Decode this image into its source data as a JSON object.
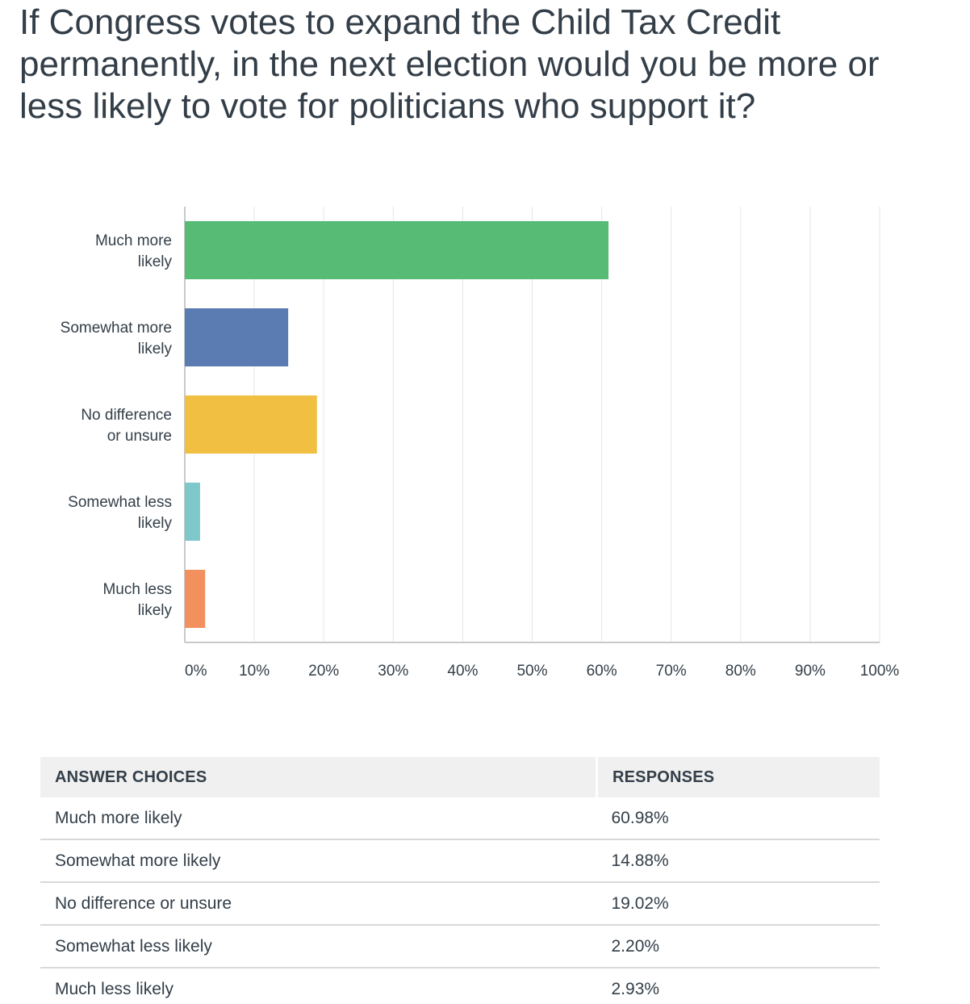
{
  "question": {
    "title": "If Congress votes to expand the Child Tax Credit permanently, in the next election would you be more or less likely to vote for politicians who support it?"
  },
  "chart_data": {
    "type": "bar",
    "orientation": "horizontal",
    "categories": [
      [
        "Much more",
        "likely"
      ],
      [
        "Somewhat more",
        "likely"
      ],
      [
        "No difference",
        "or unsure"
      ],
      [
        "Somewhat less",
        "likely"
      ],
      [
        "Much less",
        "likely"
      ]
    ],
    "values": [
      60.98,
      14.88,
      19.02,
      2.2,
      2.93
    ],
    "colors": [
      "#57bb76",
      "#5a7cb2",
      "#f1bf42",
      "#7ec8cc",
      "#f2915e"
    ],
    "xlim": [
      0,
      100
    ],
    "xticks": [
      "0%",
      "10%",
      "20%",
      "30%",
      "40%",
      "50%",
      "60%",
      "70%",
      "80%",
      "90%",
      "100%"
    ],
    "grid": true,
    "title": "",
    "xlabel": "",
    "ylabel": ""
  },
  "table": {
    "headers": [
      "ANSWER CHOICES",
      "RESPONSES"
    ],
    "rows": [
      {
        "choice": "Much more likely",
        "response": "60.98%"
      },
      {
        "choice": "Somewhat more likely",
        "response": "14.88%"
      },
      {
        "choice": "No difference or unsure",
        "response": "19.02%"
      },
      {
        "choice": "Somewhat less likely",
        "response": "2.20%"
      },
      {
        "choice": "Much less likely",
        "response": "2.93%"
      }
    ]
  }
}
